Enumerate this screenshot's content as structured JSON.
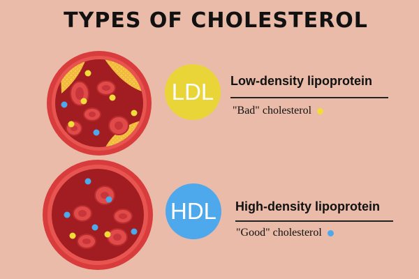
{
  "title": "TYPES OF CHOLESTEROL",
  "colors": {
    "background": "#e9bba8",
    "ldl_accent": "#ead539",
    "hdl_accent": "#4ea8ec",
    "vessel_outer": "#d93c3c",
    "vessel_inner": "#a11d22",
    "red_cell": "#e04a48",
    "plaque": "#f7c74a"
  },
  "ldl": {
    "badge": "LDL",
    "heading": "Low-density lipoprotein",
    "subtitle": "\"Bad\" cholesterol",
    "dot_color": "#ead539"
  },
  "hdl": {
    "badge": "HDL",
    "heading": "High-density lipoprotein",
    "subtitle": "\"Good\" cholesterol",
    "dot_color": "#4ea8ec"
  }
}
